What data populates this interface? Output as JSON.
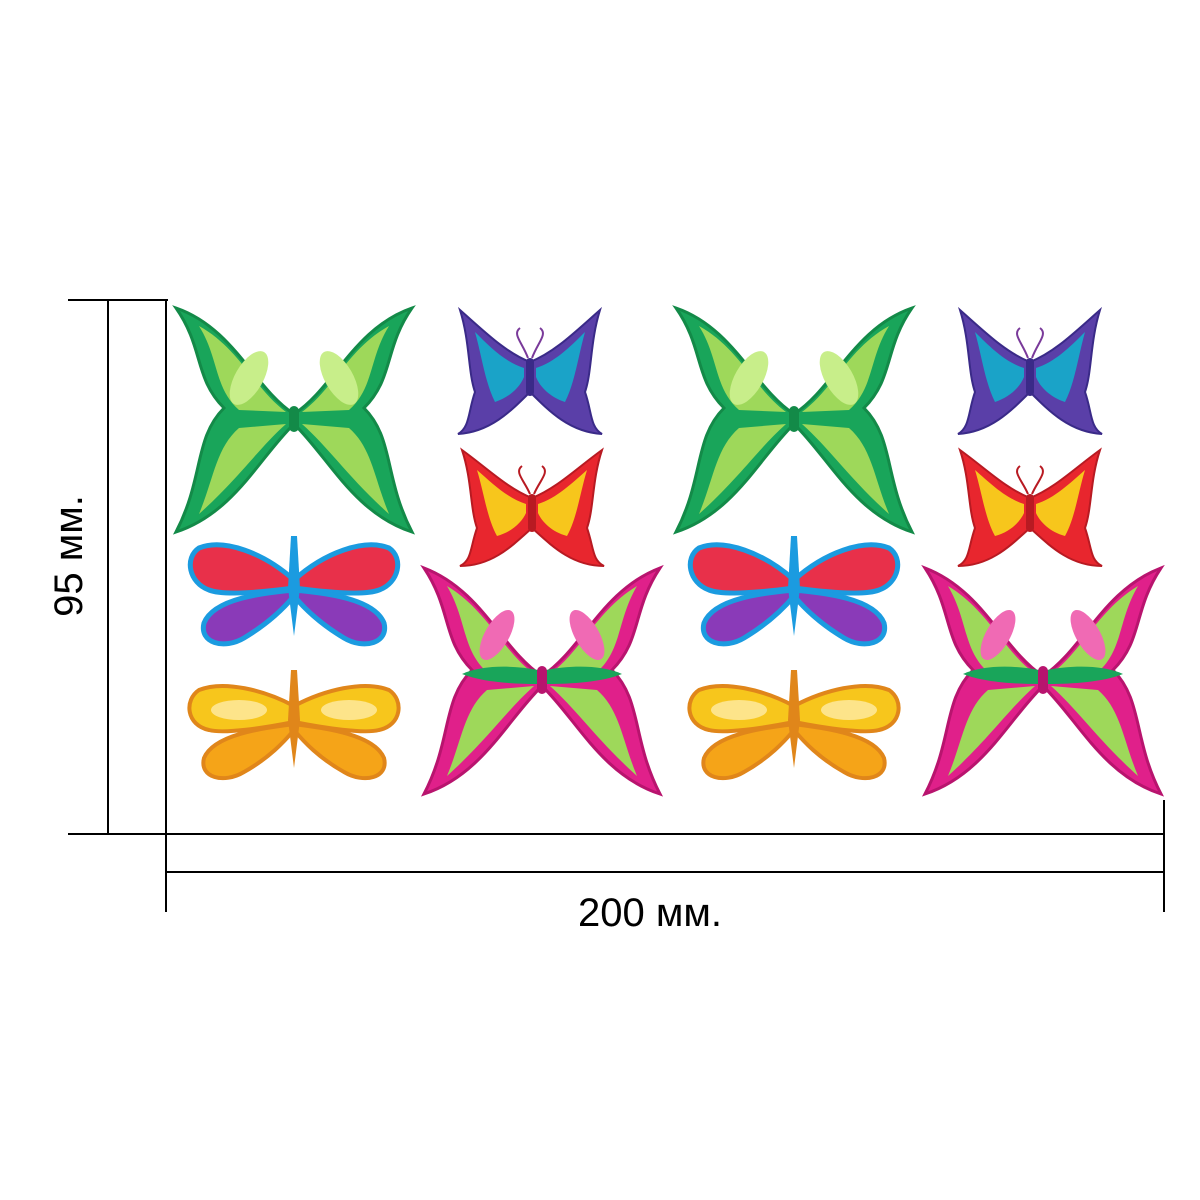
{
  "dimensions": {
    "height_label": "95 мм.",
    "width_label": "200 мм."
  },
  "colors": {
    "green_wing": "#19a55a",
    "green_light": "#9ed85a",
    "violet_wing": "#5a3fa8",
    "teal_wing": "#1aa3c8",
    "red_wing": "#e8262e",
    "yellow_wing": "#f7c61c",
    "pink_wing": "#e0208a",
    "blue_outline": "#1b9be0",
    "orange_wing": "#f5a418",
    "dim_line": "#000000"
  },
  "stickers": [
    {
      "name": "green-butterfly-sticker",
      "style": "green-large"
    },
    {
      "name": "blue-butterfly-sticker",
      "style": "blue-small"
    },
    {
      "name": "green-butterfly-sticker",
      "style": "green-large"
    },
    {
      "name": "blue-butterfly-sticker",
      "style": "blue-small"
    },
    {
      "name": "red-butterfly-sticker",
      "style": "red-small"
    },
    {
      "name": "red-butterfly-sticker",
      "style": "red-small"
    },
    {
      "name": "pink-blue-butterfly-sticker",
      "style": "pinkblue-round"
    },
    {
      "name": "pink-blue-butterfly-sticker",
      "style": "pinkblue-round"
    },
    {
      "name": "magenta-butterfly-sticker",
      "style": "magenta-large"
    },
    {
      "name": "magenta-butterfly-sticker",
      "style": "magenta-large"
    },
    {
      "name": "orange-butterfly-sticker",
      "style": "orange-round"
    },
    {
      "name": "orange-butterfly-sticker",
      "style": "orange-round"
    }
  ]
}
